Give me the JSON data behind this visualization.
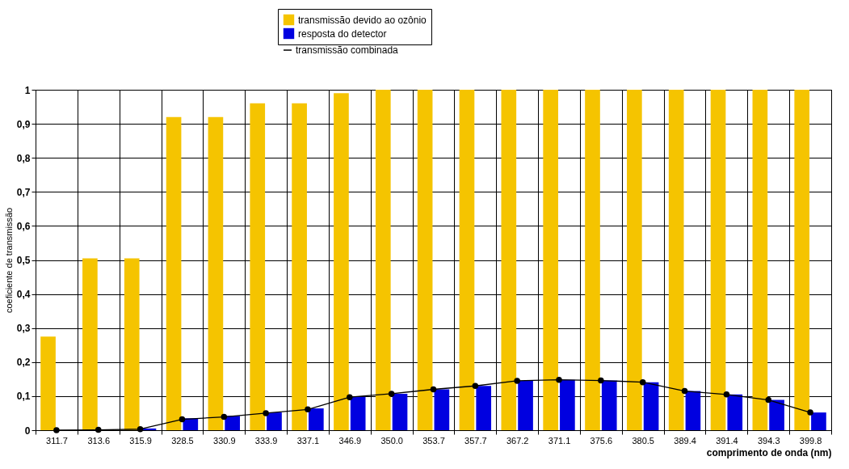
{
  "chart_data": {
    "type": "bar",
    "xlabel": "comprimento de onda (nm)",
    "ylabel": "coeficiente de transmissão",
    "categories": [
      "311.7",
      "313.6",
      "315.9",
      "328.5",
      "330.9",
      "333.9",
      "337.1",
      "346.9",
      "350.0",
      "353.7",
      "357.7",
      "367.2",
      "371.1",
      "375.6",
      "380.5",
      "389.4",
      "391.4",
      "394.3",
      "399.8"
    ],
    "series": [
      {
        "name": "transmissão devido ao ozônio",
        "color": "#f5c400",
        "values": [
          0.275,
          0.505,
          0.505,
          0.92,
          0.92,
          0.96,
          0.96,
          0.99,
          1,
          1,
          1,
          1,
          1,
          1,
          1,
          1,
          1,
          1,
          1
        ]
      },
      {
        "name": "resposta do detector",
        "color": "#0000e0",
        "values": [
          0,
          null,
          0.005,
          0.035,
          0.042,
          0.052,
          0.064,
          0.098,
          0.107,
          0.12,
          0.13,
          0.145,
          0.148,
          0.146,
          0.141,
          0.115,
          0.105,
          0.089,
          0.052
        ]
      },
      {
        "name": "transmissão combinada",
        "color": "#000000",
        "type": "line",
        "marker": "circle",
        "values": [
          0,
          0.001,
          0.003,
          0.032,
          0.039,
          0.05,
          0.061,
          0.097,
          0.107,
          0.12,
          0.13,
          0.145,
          0.148,
          0.146,
          0.141,
          0.115,
          0.105,
          0.089,
          0.052
        ]
      }
    ],
    "ylim": [
      0,
      1
    ],
    "yticks": [
      0,
      {
        "value": 0.1,
        "label": "0,1"
      },
      {
        "value": 0.2,
        "label": "0,2"
      },
      {
        "value": 0.3,
        "label": "0,3"
      },
      {
        "value": 0.4,
        "label": "0,4"
      },
      {
        "value": 0.5,
        "label": "0,5"
      },
      {
        "value": 0.6,
        "label": "0,6"
      },
      {
        "value": 0.7,
        "label": "0,7"
      },
      {
        "value": 0.8,
        "label": "0,8"
      },
      {
        "value": 0.9,
        "label": "0,9"
      },
      1
    ],
    "grid": true,
    "legend": "top"
  }
}
